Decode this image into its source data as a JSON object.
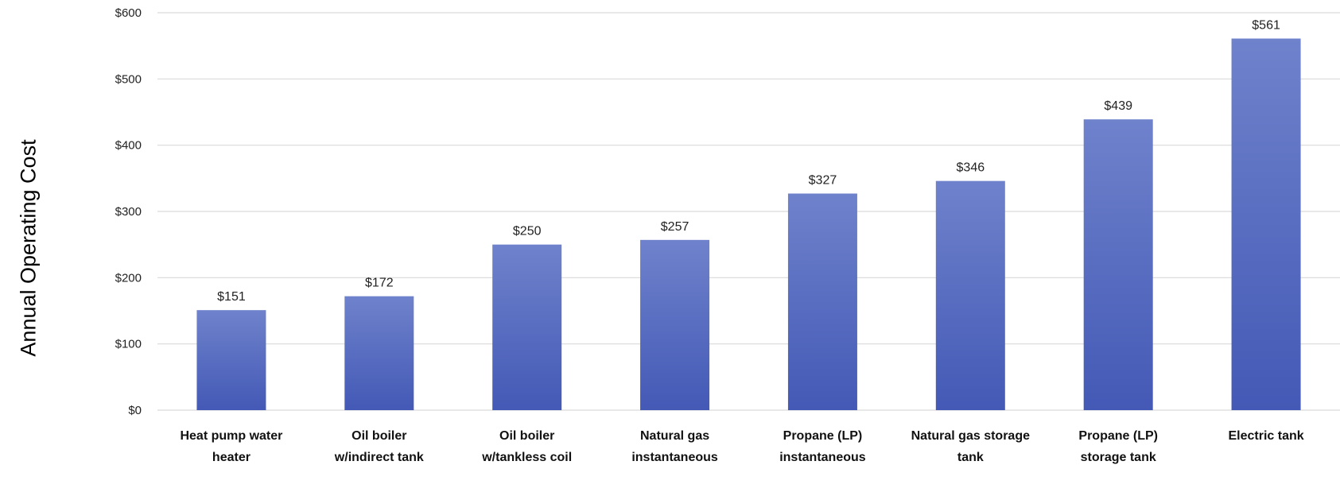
{
  "chart_data": {
    "type": "bar",
    "ylabel": "Annual Operating Cost",
    "ylim": [
      0,
      600
    ],
    "yticks": [
      "$0",
      "$100",
      "$200",
      "$300",
      "$400",
      "$500",
      "$600"
    ],
    "grid": true,
    "categories": [
      [
        "Heat pump water",
        "heater"
      ],
      [
        "Oil boiler",
        "w/indirect tank"
      ],
      [
        "Oil boiler",
        "w/tankless coil"
      ],
      [
        "Natural gas",
        "instantaneous"
      ],
      [
        "Propane (LP)",
        "instantaneous"
      ],
      [
        "Natural gas storage",
        "tank"
      ],
      [
        "Propane (LP)",
        "storage tank"
      ],
      [
        "Electric tank"
      ]
    ],
    "values": [
      151,
      172,
      250,
      257,
      327,
      346,
      439,
      561
    ],
    "value_labels": [
      "$151",
      "$172",
      "$250",
      "$257",
      "$327",
      "$346",
      "$439",
      "$561"
    ],
    "colors": {
      "bar_top": "#6f82cc",
      "bar_bottom": "#4359b5",
      "grid": "#d9d9d9"
    }
  }
}
